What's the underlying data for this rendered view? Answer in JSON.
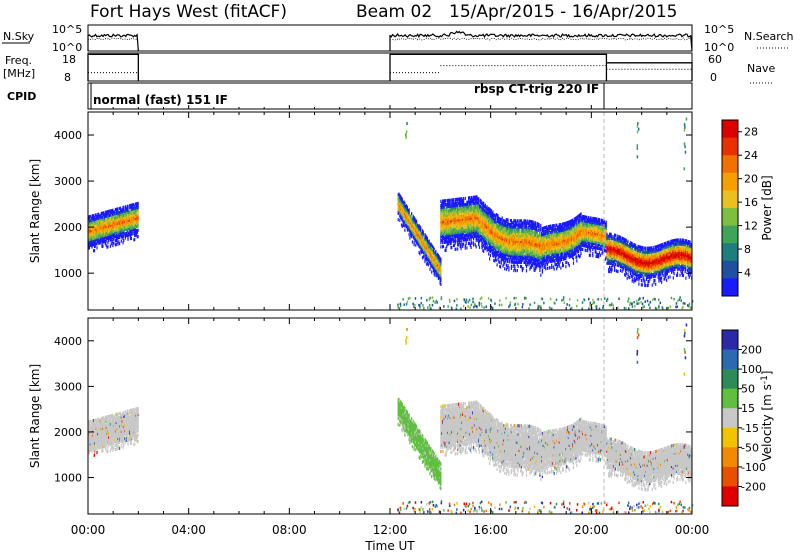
{
  "header": {
    "station": "Fort Hays West (fitACF)",
    "beam": "Beam 02",
    "dates": "15/Apr/2015 - 16/Apr/2015"
  },
  "strips": {
    "nsky_label": "N.Sky",
    "nsky_ticks": [
      "10^5",
      "10^0"
    ],
    "nsearch_label": "N.Search",
    "nsearch_ticks": [
      "10^5",
      "10^0"
    ],
    "freq_label": "Freq.",
    "freq_unit": "[MHz]",
    "freq_ticks": [
      "18",
      "8"
    ],
    "nave_label": "Nave",
    "nave_ticks": [
      "60",
      "0"
    ],
    "cpid_label": "CPID",
    "cpid_segments": [
      {
        "label": "normal (fast) 151 IF",
        "start_h": 0.0,
        "end_h": 2.0
      },
      {
        "label": "rbsp CT-trig 220 IF",
        "start_h": 12.0,
        "end_h": 20.6
      }
    ],
    "freq_segments": [
      {
        "start_h": 0.0,
        "end_h": 2.0,
        "level": 0.95
      },
      {
        "start_h": 12.0,
        "end_h": 20.6,
        "level": 0.95
      },
      {
        "start_h": 20.6,
        "end_h": 24.0,
        "level": 0.65
      }
    ],
    "nave_segments": [
      {
        "start_h": 0.0,
        "end_h": 2.0,
        "level": 0.3
      },
      {
        "start_h": 12.0,
        "end_h": 14.0,
        "level": 0.3
      },
      {
        "start_h": 14.0,
        "end_h": 20.6,
        "level": 0.55
      },
      {
        "start_h": 20.6,
        "end_h": 24.0,
        "level": 0.42
      }
    ]
  },
  "chart_data": [
    {
      "type": "heatmap",
      "panel": "power",
      "xlabel": "Time UT",
      "ylabel": "Slant Range [km]",
      "x_ticks": [
        "00:00",
        "04:00",
        "08:00",
        "12:00",
        "16:00",
        "20:00",
        "00:00"
      ],
      "x_range_hours": [
        0,
        24
      ],
      "y_ticks": [
        1000,
        2000,
        3000,
        4000
      ],
      "ylim": [
        200,
        4500
      ],
      "colorbar_label": "Power [dB]",
      "colorbar_ticks": [
        4,
        8,
        12,
        16,
        20,
        24,
        28
      ],
      "colorbar_range": [
        0,
        30
      ],
      "colorbar_colors": [
        "#1a1aff",
        "#1f4fa0",
        "#1e7e7e",
        "#3fa35a",
        "#7fbf3f",
        "#e8c020",
        "#f5a000",
        "#f07000",
        "#e83000",
        "#dd0000"
      ],
      "echo_bands": [
        {
          "start_h": 0.0,
          "end_h": 2.0,
          "center_km": [
            1900,
            2200
          ],
          "width_km": 650
        },
        {
          "start_h": 12.3,
          "end_h": 14.0,
          "center_km": [
            2500,
            1050
          ],
          "width_km": 500
        },
        {
          "start_h": 14.0,
          "end_h": 15.5,
          "center_km": [
            2100,
            2200
          ],
          "width_km": 900
        },
        {
          "start_h": 15.5,
          "end_h": 18.0,
          "center_km": [
            2100,
            1450
          ],
          "width_km": 900
        },
        {
          "start_h": 18.0,
          "end_h": 19.6,
          "center_km": [
            1450,
            2000
          ],
          "width_km": 800
        },
        {
          "start_h": 19.6,
          "end_h": 20.6,
          "center_km": [
            2000,
            1650
          ],
          "width_km": 700
        },
        {
          "start_h": 20.6,
          "end_h": 24.0,
          "center_km": [
            1400,
            1250
          ],
          "width_km": 700
        }
      ]
    },
    {
      "type": "heatmap",
      "panel": "velocity",
      "xlabel": "Time UT",
      "ylabel": "Slant Range [km]",
      "x_ticks": [
        "00:00",
        "04:00",
        "08:00",
        "12:00",
        "16:00",
        "20:00",
        "00:00"
      ],
      "x_range_hours": [
        0,
        24
      ],
      "y_ticks": [
        1000,
        2000,
        3000,
        4000
      ],
      "ylim": [
        200,
        4500
      ],
      "colorbar_label": "Velocity [m s^-1]",
      "colorbar_ticks": [
        "200",
        "100",
        "50",
        "15",
        "-15",
        "-50",
        "-100",
        "-200"
      ],
      "colorbar_colors": [
        "#2a2aa8",
        "#2a6ab0",
        "#2e8b57",
        "#5fbf3f",
        "#c8c8c8",
        "#f2c200",
        "#f08a00",
        "#e85000",
        "#e00000"
      ],
      "ground_scatter_color": "#c8c8c8",
      "green_feature": {
        "start_h": 12.3,
        "end_h": 14.0,
        "center_km": [
          2500,
          1050
        ],
        "width_km": 500
      }
    }
  ]
}
